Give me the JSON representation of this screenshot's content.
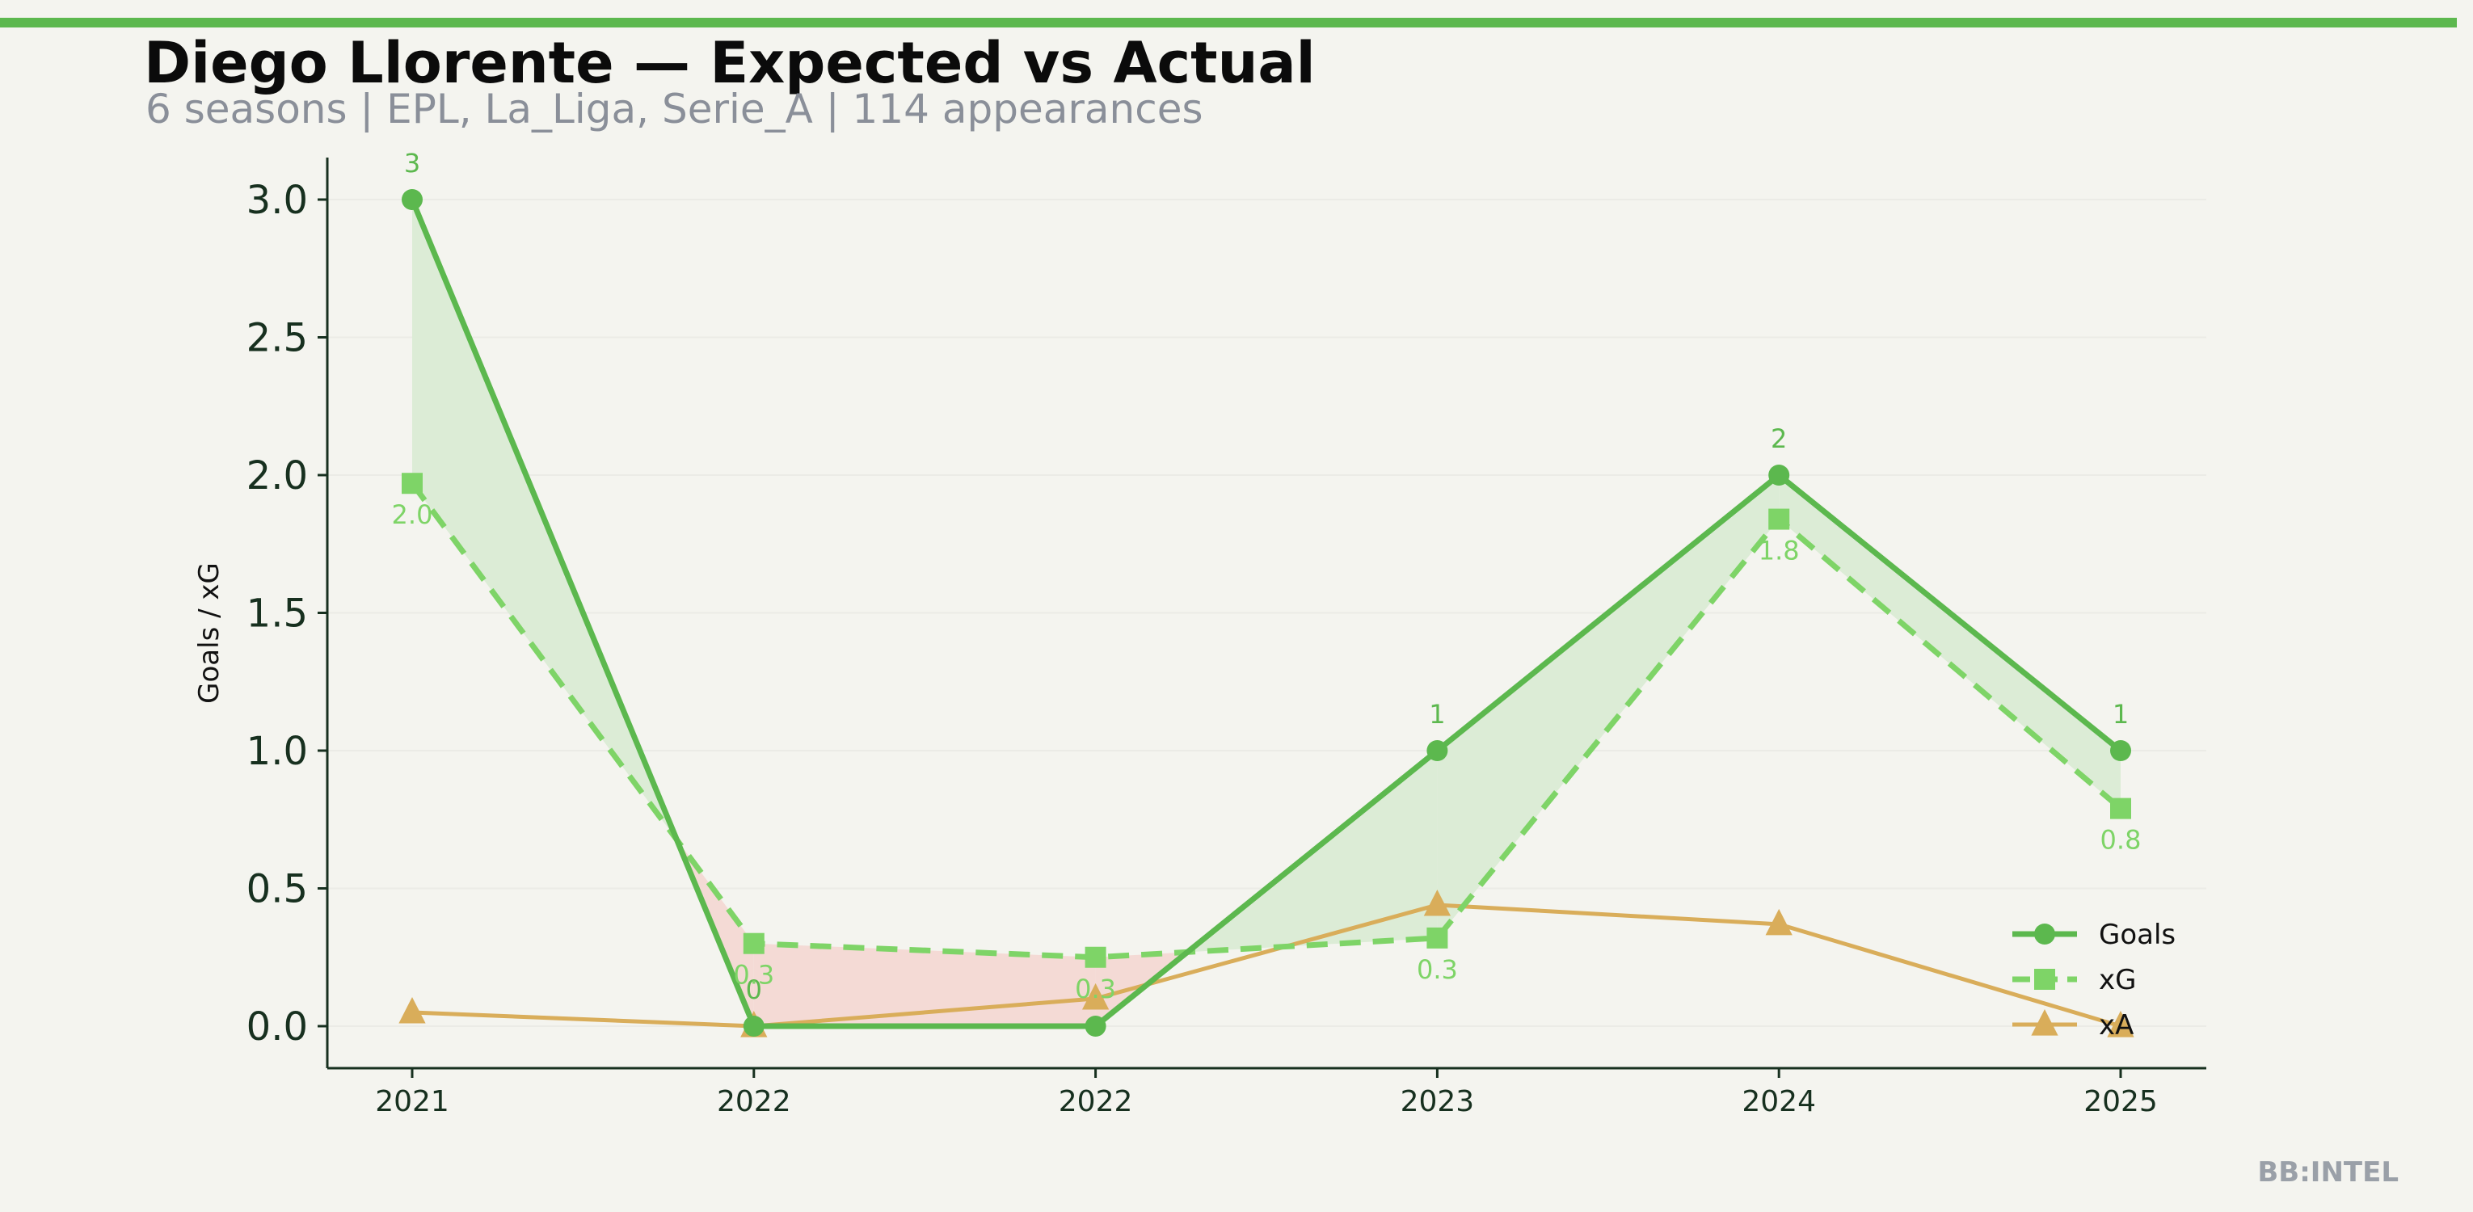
{
  "header": {
    "title": "Diego Llorente — Expected vs Actual",
    "subtitle": "6 seasons | EPL, La_Liga, Serie_A | 114 appearances"
  },
  "watermark": "BB:INTEL",
  "colors": {
    "accent_bar": "#5cb84e",
    "goals": "#5cb84e",
    "xg": "#7ed467",
    "xa": "#d9ad5a",
    "fill_over": "#dcecd6",
    "fill_under": "#f4dad5",
    "axis": "#17301f",
    "grid": "#ebebe6"
  },
  "chart_data": {
    "type": "line",
    "categories": [
      "2021",
      "2022",
      "2022",
      "2023",
      "2024",
      "2025"
    ],
    "ylabel": "Goals / xG",
    "ylim": [
      -0.15,
      3.15
    ],
    "yticks": [
      "0.0",
      "0.5",
      "1.0",
      "1.5",
      "2.0",
      "2.5",
      "3.0"
    ],
    "legend_position": "lower-right",
    "series": [
      {
        "name": "Goals",
        "style": "solid",
        "marker": "circle",
        "values": [
          3,
          0,
          0,
          1,
          2,
          1
        ],
        "labels": [
          "3",
          "0",
          "",
          "1",
          "2",
          "1"
        ]
      },
      {
        "name": "xG",
        "style": "dashed",
        "marker": "square",
        "values": [
          1.97,
          0.3,
          0.25,
          0.32,
          1.84,
          0.79
        ],
        "labels": [
          "2.0",
          "0.3",
          "0.3",
          "0.3",
          "1.8",
          "0.8"
        ]
      },
      {
        "name": "xA",
        "style": "solid",
        "marker": "triangle",
        "values": [
          0.05,
          0.0,
          0.1,
          0.44,
          0.37,
          0.0
        ],
        "labels": [
          "",
          "",
          "",
          "",
          "",
          ""
        ]
      }
    ]
  }
}
